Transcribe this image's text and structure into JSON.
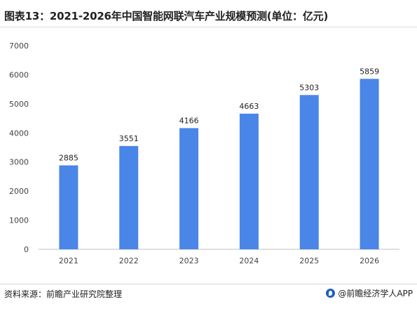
{
  "chart_data": {
    "type": "bar",
    "title": "图表13：2021-2026年中国智能网联汽车产业规模预测(单位：亿元)",
    "categories": [
      "2021",
      "2022",
      "2023",
      "2024",
      "2025",
      "2026"
    ],
    "values": [
      2885,
      3551,
      4166,
      4663,
      5303,
      5859
    ],
    "data_labels": [
      "2885",
      "3551",
      "4166",
      "4663",
      "5303",
      "5859"
    ],
    "ylim": [
      0,
      7000
    ],
    "yticks": [
      "0",
      "1000",
      "2000",
      "3000",
      "4000",
      "5000",
      "6000",
      "7000"
    ],
    "ytick_values": [
      0,
      1000,
      2000,
      3000,
      4000,
      5000,
      6000,
      7000
    ],
    "xlabel": "",
    "ylabel": "",
    "grid": false,
    "bar_color": "#4a86e8"
  },
  "footer": {
    "source": "资料来源：前瞻产业研究院整理",
    "brand": "@前瞻经济学人APP"
  },
  "colors": {
    "bar": "#4a86e8",
    "axis": "#bfbfbf"
  }
}
